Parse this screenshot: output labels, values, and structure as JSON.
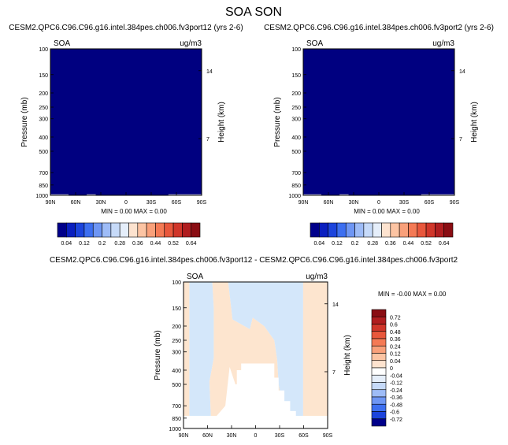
{
  "figure": {
    "title": "SOA SON"
  },
  "colors": {
    "navy": "#000080",
    "tan": "#fde5cf",
    "lightblue": "#d4e7fa",
    "white": "#ffffff"
  },
  "chart_data": [
    {
      "type": "heatmap",
      "title": "CESM2.QPC6.C96.C96.g16.intel.384pes.ch006.fv3port12 (yrs 2-6)",
      "left_label": "SOA",
      "right_label": "ug/m3",
      "ylabel": "Pressure (mb)",
      "ylabel_right": "Height (km)",
      "x_ticks": [
        "90N",
        "60N",
        "30N",
        "0",
        "30S",
        "60S",
        "90S"
      ],
      "y_ticks": [
        "100",
        "150",
        "200",
        "250",
        "300",
        "400",
        "500",
        "700",
        "850",
        "1000"
      ],
      "height_ticks": [
        "14",
        "7"
      ],
      "stats": "MIN =   0.00   MAX =   0.00",
      "colorbar_labels": [
        "0.04",
        "0.12",
        "0.2",
        "0.28",
        "0.36",
        "0.44",
        "0.52",
        "0.64"
      ],
      "colorbar_colors": [
        "#00008a",
        "#0a1fbf",
        "#1c44dc",
        "#3d6ff0",
        "#6e96f4",
        "#9ebcf7",
        "#c6daf9",
        "#e5eefa",
        "#fde3cf",
        "#fcc4a3",
        "#f9a07a",
        "#f47a55",
        "#e8573c",
        "#d0362a",
        "#b01d1f",
        "#8a0d13"
      ]
    },
    {
      "type": "heatmap",
      "title": "CESM2.QPC6.C96.C96.g16.intel.384pes.ch006.fv3port2 (yrs 2-6)",
      "left_label": "SOA",
      "right_label": "ug/m3",
      "ylabel": "Pressure (mb)",
      "ylabel_right": "Height (km)",
      "x_ticks": [
        "90N",
        "60N",
        "30N",
        "0",
        "30S",
        "60S",
        "90S"
      ],
      "y_ticks": [
        "100",
        "150",
        "200",
        "250",
        "300",
        "400",
        "500",
        "700",
        "850",
        "1000"
      ],
      "height_ticks": [
        "14",
        "7"
      ],
      "stats": "MIN =   0.00   MAX =   0.00",
      "colorbar_labels": [
        "0.04",
        "0.12",
        "0.2",
        "0.28",
        "0.36",
        "0.44",
        "0.52",
        "0.64"
      ],
      "colorbar_colors": [
        "#00008a",
        "#0a1fbf",
        "#1c44dc",
        "#3d6ff0",
        "#6e96f4",
        "#9ebcf7",
        "#c6daf9",
        "#e5eefa",
        "#fde3cf",
        "#fcc4a3",
        "#f9a07a",
        "#f47a55",
        "#e8573c",
        "#d0362a",
        "#b01d1f",
        "#8a0d13"
      ]
    },
    {
      "type": "heatmap",
      "title": "CESM2.QPC6.C96.C96.g16.intel.384pes.ch006.fv3port12 - CESM2.QPC6.C96.C96.g16.intel.384pes.ch006.fv3port2",
      "left_label": "SOA",
      "right_label": "ug/m3",
      "ylabel": "Pressure (mb)",
      "ylabel_right": "Height (km)",
      "x_ticks": [
        "90N",
        "60N",
        "30N",
        "0",
        "30S",
        "60S",
        "90S"
      ],
      "y_ticks": [
        "100",
        "150",
        "200",
        "250",
        "300",
        "400",
        "500",
        "700",
        "850",
        "1000"
      ],
      "height_ticks": [
        "14",
        "7"
      ],
      "stats": "MIN =  -0.00   MAX =   0.00",
      "colorbar_labels": [
        "0.72",
        "0.6",
        "0.48",
        "0.36",
        "0.24",
        "0.12",
        "0.04",
        "0",
        "-0.04",
        "-0.12",
        "-0.24",
        "-0.36",
        "-0.48",
        "-0.6",
        "-0.72"
      ],
      "colorbar_colors": [
        "#8a0d13",
        "#b01d1f",
        "#d0362a",
        "#e8573c",
        "#f47a55",
        "#f9a07a",
        "#fcc4a3",
        "#fde3cf",
        "#ffffff",
        "#e5eefa",
        "#c6daf9",
        "#9ebcf7",
        "#6e96f4",
        "#3d6ff0",
        "#1c44dc",
        "#00008a"
      ]
    }
  ]
}
